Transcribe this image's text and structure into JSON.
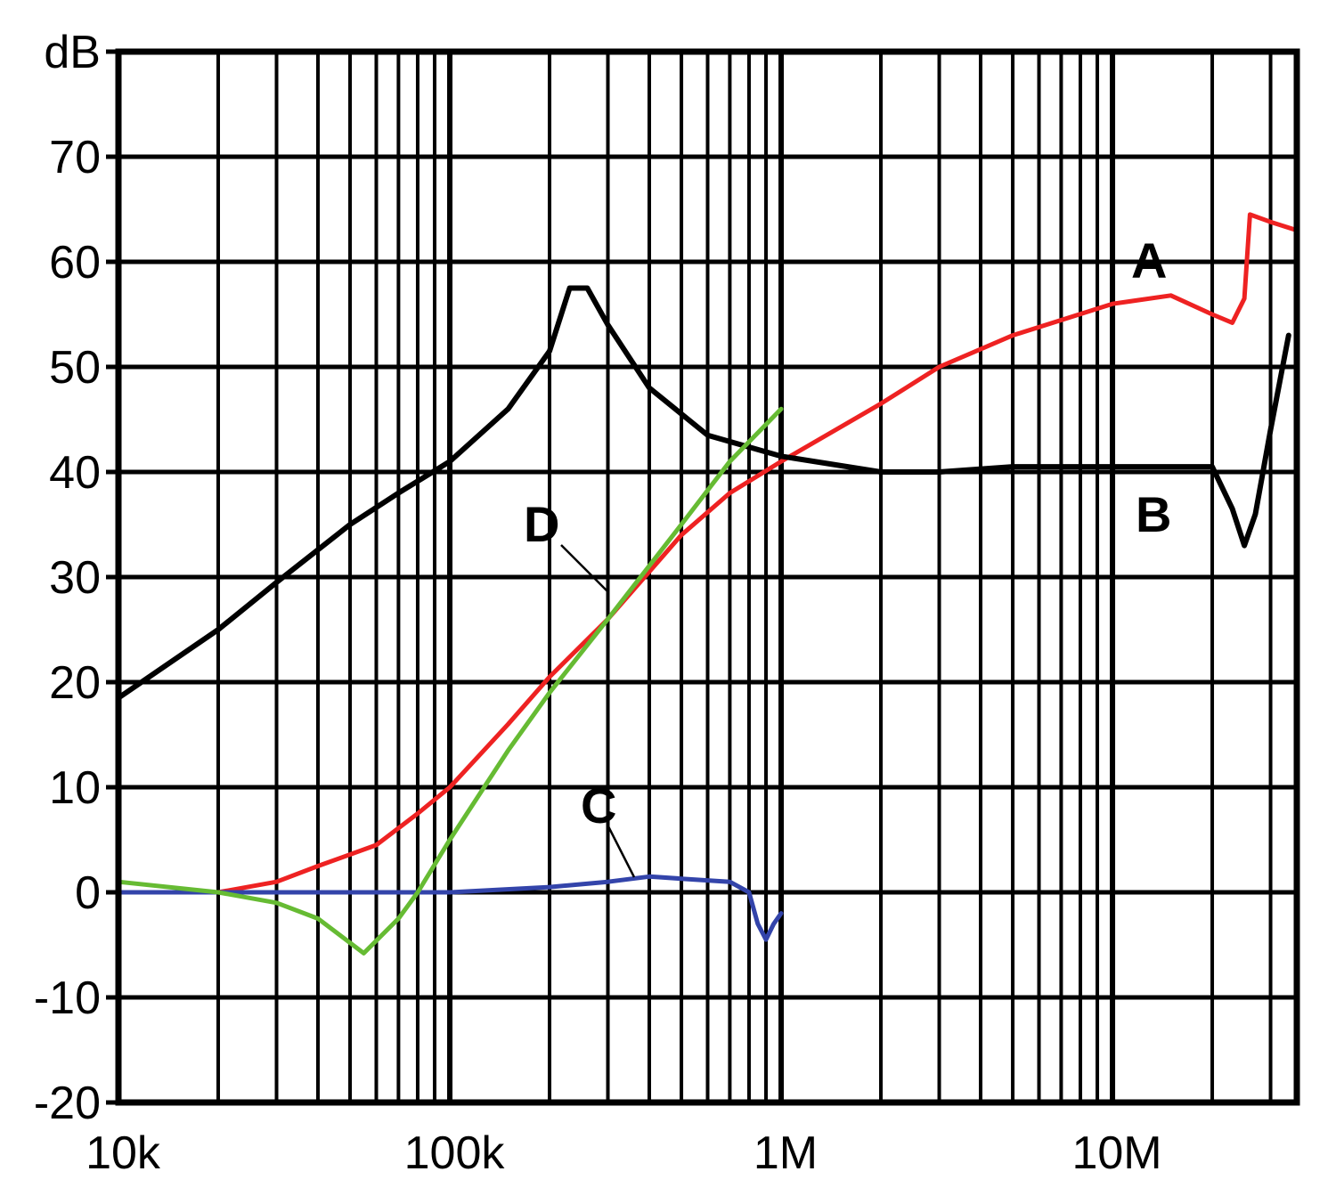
{
  "chart_data": {
    "type": "line",
    "ylabel": "dB",
    "xscale": "log",
    "xlim": [
      10000,
      36000000
    ],
    "ylim": [
      -20,
      80
    ],
    "grid": true,
    "x_ticks": [
      {
        "value": 10000,
        "label": "10k"
      },
      {
        "value": 100000,
        "label": "100k"
      },
      {
        "value": 1000000,
        "label": "1M"
      },
      {
        "value": 10000000,
        "label": "10M"
      }
    ],
    "y_ticks": [
      {
        "value": 80,
        "label": "dB"
      },
      {
        "value": 70,
        "label": "70"
      },
      {
        "value": 60,
        "label": "60"
      },
      {
        "value": 50,
        "label": "50"
      },
      {
        "value": 40,
        "label": "40"
      },
      {
        "value": 30,
        "label": "30"
      },
      {
        "value": 20,
        "label": "20"
      },
      {
        "value": 10,
        "label": "10"
      },
      {
        "value": 0,
        "label": "0"
      },
      {
        "value": -10,
        "label": "-10"
      },
      {
        "value": -20,
        "label": "-20"
      }
    ],
    "series": [
      {
        "name": "A",
        "color": "#ee2222",
        "points": [
          [
            10000,
            0
          ],
          [
            20000,
            0
          ],
          [
            30000,
            1
          ],
          [
            40000,
            2.5
          ],
          [
            60000,
            4.5
          ],
          [
            80000,
            7.5
          ],
          [
            100000,
            10
          ],
          [
            150000,
            16
          ],
          [
            200000,
            20.5
          ],
          [
            300000,
            26
          ],
          [
            500000,
            34
          ],
          [
            700000,
            38
          ],
          [
            1000000,
            41
          ],
          [
            2000000,
            46.5
          ],
          [
            3000000,
            50
          ],
          [
            5000000,
            53
          ],
          [
            10000000,
            56
          ],
          [
            15000000,
            56.8
          ],
          [
            20000000,
            55
          ],
          [
            23000000,
            54.2
          ],
          [
            25000000,
            56.5
          ],
          [
            26000000,
            64.5
          ],
          [
            30000000,
            63.8
          ],
          [
            36000000,
            63
          ]
        ]
      },
      {
        "name": "B",
        "color": "#000000",
        "points": [
          [
            10000,
            18.5
          ],
          [
            20000,
            25
          ],
          [
            30000,
            29.5
          ],
          [
            50000,
            35
          ],
          [
            70000,
            38
          ],
          [
            100000,
            41
          ],
          [
            150000,
            46
          ],
          [
            200000,
            51.5
          ],
          [
            230000,
            57.5
          ],
          [
            260000,
            57.5
          ],
          [
            300000,
            54
          ],
          [
            400000,
            48
          ],
          [
            600000,
            43.5
          ],
          [
            1000000,
            41.5
          ],
          [
            2000000,
            40
          ],
          [
            3000000,
            40
          ],
          [
            5000000,
            40.5
          ],
          [
            10000000,
            40.5
          ],
          [
            20000000,
            40.5
          ],
          [
            23000000,
            36.5
          ],
          [
            25000000,
            33
          ],
          [
            27000000,
            36
          ],
          [
            30000000,
            44
          ],
          [
            34000000,
            53
          ]
        ]
      },
      {
        "name": "C",
        "color": "#3344aa",
        "points": [
          [
            10000,
            0
          ],
          [
            30000,
            0
          ],
          [
            100000,
            0
          ],
          [
            200000,
            0.5
          ],
          [
            300000,
            1
          ],
          [
            400000,
            1.5
          ],
          [
            500000,
            1.3
          ],
          [
            700000,
            1
          ],
          [
            800000,
            0
          ],
          [
            850000,
            -3
          ],
          [
            900000,
            -4.5
          ],
          [
            950000,
            -3
          ],
          [
            1000000,
            -2
          ]
        ]
      },
      {
        "name": "D",
        "color": "#66bb33",
        "points": [
          [
            10000,
            1
          ],
          [
            20000,
            0
          ],
          [
            30000,
            -1
          ],
          [
            40000,
            -2.5
          ],
          [
            55000,
            -5.8
          ],
          [
            70000,
            -2.5
          ],
          [
            80000,
            0
          ],
          [
            100000,
            5
          ],
          [
            150000,
            13.5
          ],
          [
            200000,
            19
          ],
          [
            300000,
            26
          ],
          [
            500000,
            35
          ],
          [
            700000,
            41
          ],
          [
            1000000,
            46
          ]
        ]
      }
    ]
  }
}
